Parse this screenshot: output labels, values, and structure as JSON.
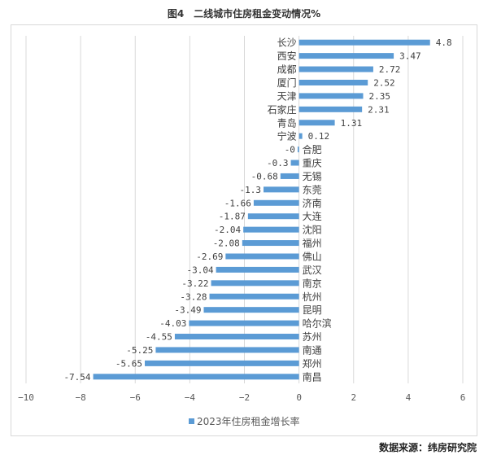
{
  "chart_data": {
    "type": "bar",
    "orientation": "horizontal",
    "title": "图4　二线城市住房租金变动情况%",
    "categories": [
      "长沙",
      "西安",
      "成都",
      "厦门",
      "天津",
      "石家庄",
      "青岛",
      "宁波",
      "合肥",
      "重庆",
      "无锡",
      "东莞",
      "济南",
      "大连",
      "沈阳",
      "福州",
      "佛山",
      "武汉",
      "南京",
      "杭州",
      "昆明",
      "哈尔滨",
      "苏州",
      "南通",
      "郑州",
      "南昌"
    ],
    "series": [
      {
        "name": "2023年住房租金增长率",
        "values": [
          4.8,
          3.47,
          2.72,
          2.52,
          2.35,
          2.31,
          1.31,
          0.12,
          -0.05,
          -0.3,
          -0.68,
          -1.3,
          -1.66,
          -1.87,
          -2.04,
          -2.08,
          -2.69,
          -3.04,
          -3.22,
          -3.28,
          -3.49,
          -4.03,
          -4.55,
          -5.25,
          -5.65,
          -7.54
        ]
      }
    ],
    "value_labels": [
      "4.8",
      "3.47",
      "2.72",
      "2.52",
      "2.35",
      "2.31",
      "1.31",
      "0.12",
      "-0",
      "-0.3",
      "-0.68",
      "-1.3",
      "-1.66",
      "-1.87",
      "-2.04",
      "-2.08",
      "-2.69",
      "-3.04",
      "-3.22",
      "-3.28",
      "-3.49",
      "-4.03",
      "-4.55",
      "-5.25",
      "-5.65",
      "-7.54"
    ],
    "xlim": [
      -10,
      6
    ],
    "xticks": [
      -10,
      -8,
      -6,
      -4,
      -2,
      0,
      2,
      4,
      6
    ],
    "grid": "vertical",
    "legend": "bottom",
    "bar_color": "#5b9bd5",
    "xlabel": "",
    "ylabel": ""
  },
  "source": "数据来源：纬房研究院"
}
